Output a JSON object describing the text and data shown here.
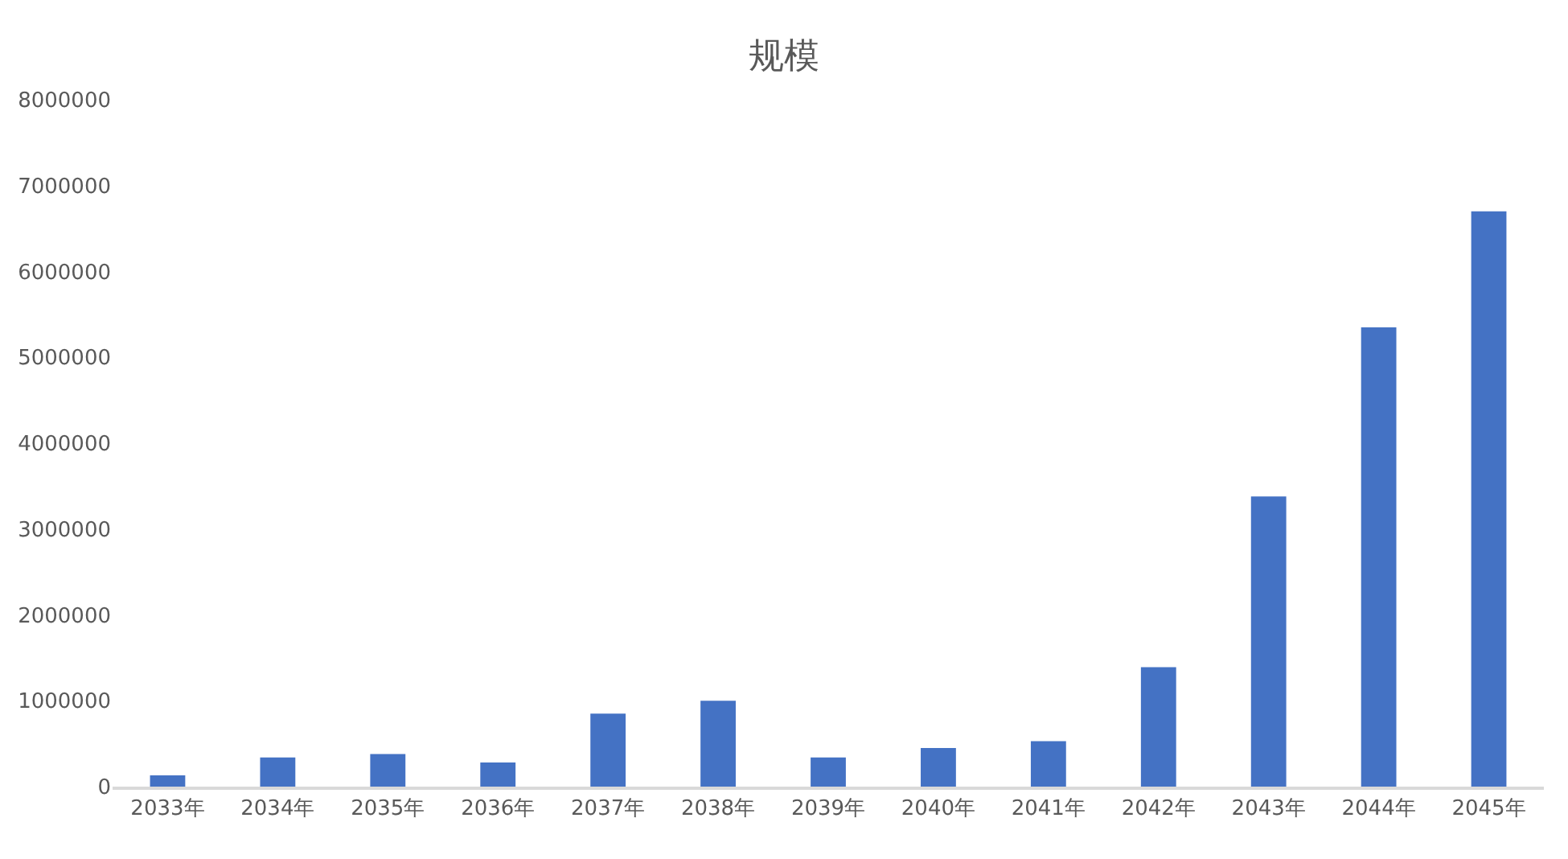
{
  "chart_data": {
    "type": "bar",
    "title": "规模",
    "categories": [
      "2033年",
      "2034年",
      "2035年",
      "2036年",
      "2037年",
      "2038年",
      "2039年",
      "2040年",
      "2041年",
      "2042年",
      "2043年",
      "2044年",
      "2045年"
    ],
    "values": [
      130000,
      340000,
      380000,
      280000,
      850000,
      1000000,
      340000,
      450000,
      530000,
      1390000,
      3380000,
      5350000,
      6700000
    ],
    "color": "#4472c4",
    "ylim": [
      0,
      8000000
    ],
    "yticks": [
      0,
      1000000,
      2000000,
      3000000,
      4000000,
      5000000,
      6000000,
      7000000,
      8000000
    ],
    "grid": false,
    "legend": false
  }
}
